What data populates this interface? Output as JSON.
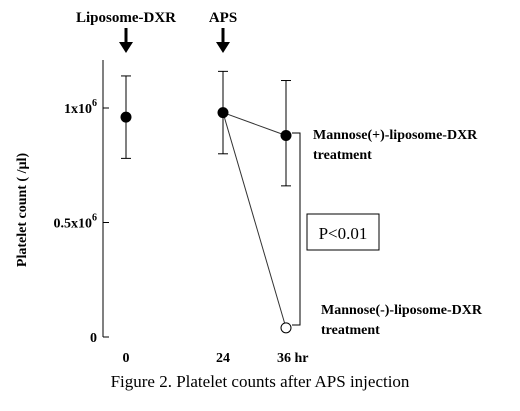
{
  "chart_data": {
    "type": "line",
    "ylabel": "Platelet count ( /µl)",
    "ylim": [
      0,
      1150000
    ],
    "x_ticks": [
      {
        "x": 0,
        "label": "0"
      },
      {
        "x": 24,
        "label": "24"
      },
      {
        "x": 36,
        "label": "36 hr"
      }
    ],
    "y_ticks": [
      {
        "value": 0,
        "label": "0",
        "sup": ""
      },
      {
        "value": 500000,
        "label": "0.5x10",
        "sup": "6"
      },
      {
        "value": 1000000,
        "label": "1x10",
        "sup": "6"
      }
    ],
    "series": [
      {
        "name": "Mannose(+)-liposome-DXR treatment",
        "marker": "filled-circle",
        "x": [
          0,
          24,
          36
        ],
        "y": [
          960000,
          980000,
          880000
        ],
        "err_low": [
          780000,
          800000,
          660000
        ],
        "err_high": [
          1140000,
          1160000,
          1120000
        ],
        "connect_from_index": 1
      },
      {
        "name": "Mannose(-)-liposome-DXR treatment",
        "marker": "open-circle",
        "x": [
          24,
          36
        ],
        "y": [
          980000,
          40000
        ],
        "connect_from_index": 0
      }
    ],
    "events": [
      {
        "label": "Liposome-DXR",
        "x": 0
      },
      {
        "label": "APS",
        "x": 24
      }
    ],
    "annotations": {
      "series1_label_line1": "Mannose(+)-liposome-DXR",
      "series1_label_line2": "treatment",
      "series2_label_line1": "Mannose(-)-liposome-DXR",
      "series2_label_line2": "treatment",
      "pvalue": "P<0.01"
    },
    "caption": "Figure 2. Platelet counts after APS injection"
  }
}
